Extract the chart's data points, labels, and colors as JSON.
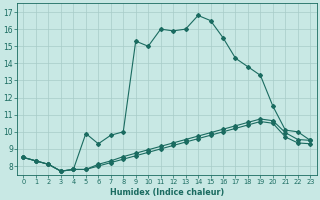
{
  "xlabel": "Humidex (Indice chaleur)",
  "xlim": [
    -0.5,
    23.5
  ],
  "ylim": [
    7.5,
    17.5
  ],
  "yticks": [
    8,
    9,
    10,
    11,
    12,
    13,
    14,
    15,
    16,
    17
  ],
  "xticks": [
    0,
    1,
    2,
    3,
    4,
    5,
    6,
    7,
    8,
    9,
    10,
    11,
    12,
    13,
    14,
    15,
    16,
    17,
    18,
    19,
    20,
    21,
    22,
    23
  ],
  "bg_color": "#c8e8e4",
  "grid_color": "#a8ccc8",
  "line_color": "#1a6b60",
  "curve1_x": [
    0,
    1,
    2,
    3,
    4,
    5,
    6,
    7,
    8,
    9,
    10,
    11,
    12,
    13,
    14,
    15,
    16,
    17,
    18,
    19,
    20,
    21,
    22,
    23
  ],
  "curve1_y": [
    8.5,
    8.3,
    8.1,
    7.7,
    7.8,
    9.9,
    9.3,
    9.8,
    10.0,
    15.3,
    15.0,
    16.0,
    15.9,
    16.0,
    16.8,
    16.5,
    15.5,
    14.3,
    13.8,
    13.3,
    11.5,
    10.1,
    10.0,
    9.5
  ],
  "curve2_x": [
    0,
    1,
    2,
    3,
    4,
    5,
    6,
    7,
    8,
    9,
    10,
    11,
    12,
    13,
    14,
    15,
    16,
    17,
    18,
    19,
    20,
    21,
    22,
    23
  ],
  "curve2_y": [
    8.5,
    8.3,
    8.1,
    7.7,
    7.8,
    7.8,
    8.1,
    8.3,
    8.55,
    8.75,
    8.95,
    9.15,
    9.35,
    9.55,
    9.75,
    9.95,
    10.15,
    10.35,
    10.55,
    10.75,
    10.65,
    9.95,
    9.55,
    9.5
  ],
  "curve3_x": [
    0,
    1,
    2,
    3,
    4,
    5,
    6,
    7,
    8,
    9,
    10,
    11,
    12,
    13,
    14,
    15,
    16,
    17,
    18,
    19,
    20,
    21,
    22,
    23
  ],
  "curve3_y": [
    8.5,
    8.3,
    8.1,
    7.7,
    7.8,
    7.8,
    8.0,
    8.2,
    8.4,
    8.6,
    8.8,
    9.0,
    9.2,
    9.4,
    9.6,
    9.8,
    10.0,
    10.2,
    10.4,
    10.6,
    10.5,
    9.7,
    9.35,
    9.3
  ],
  "markersize": 2.0,
  "linewidth": 0.8
}
